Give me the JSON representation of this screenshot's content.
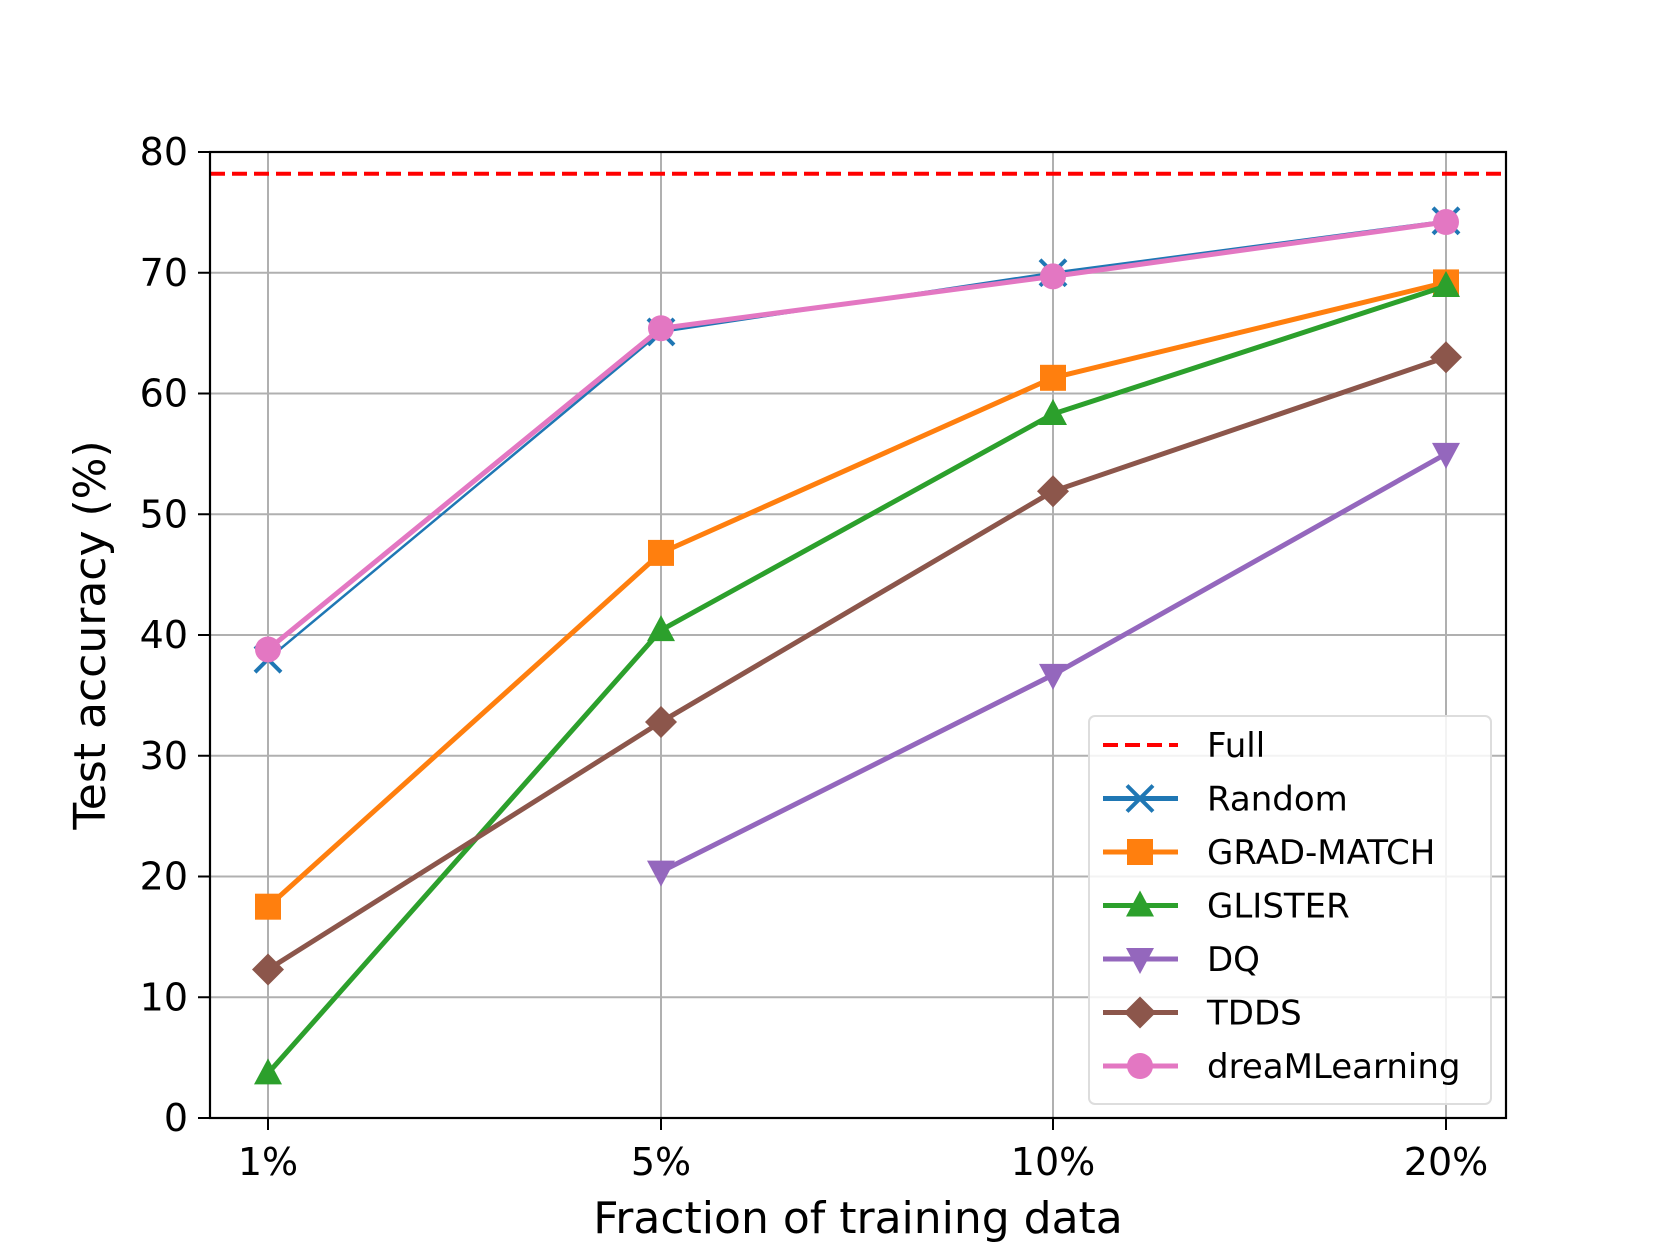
{
  "chart_data": {
    "type": "line",
    "title": "",
    "xlabel": "Fraction of training data",
    "ylabel": "Test accuracy (%)",
    "categories": [
      "1%",
      "5%",
      "10%",
      "20%"
    ],
    "ylim": [
      0,
      80
    ],
    "yticks": [
      0,
      10,
      20,
      30,
      40,
      50,
      60,
      70,
      80
    ],
    "grid": true,
    "legend_position": "lower-right",
    "reference_lines": [
      {
        "name": "Full",
        "value": 78.2,
        "color": "#ff0000",
        "style": "dashed"
      }
    ],
    "series": [
      {
        "name": "Random",
        "color": "#1f77b4",
        "marker": "x",
        "values": [
          38.0,
          65.1,
          70.0,
          74.3
        ]
      },
      {
        "name": "GRAD-MATCH",
        "color": "#ff7f0e",
        "marker": "square",
        "values": [
          17.5,
          46.8,
          61.3,
          69.2
        ]
      },
      {
        "name": "GLISTER",
        "color": "#2ca02c",
        "marker": "triangle-up",
        "values": [
          3.7,
          40.4,
          58.3,
          68.9
        ]
      },
      {
        "name": "DQ",
        "color": "#9467bd",
        "marker": "triangle-down",
        "values": [
          null,
          20.4,
          36.7,
          55.0
        ]
      },
      {
        "name": "TDDS",
        "color": "#8c564b",
        "marker": "diamond",
        "values": [
          12.3,
          32.8,
          51.9,
          63.0
        ]
      },
      {
        "name": "dreaMLearning",
        "color": "#e377c2",
        "marker": "circle",
        "values": [
          38.8,
          65.4,
          69.7,
          74.2
        ]
      }
    ]
  }
}
